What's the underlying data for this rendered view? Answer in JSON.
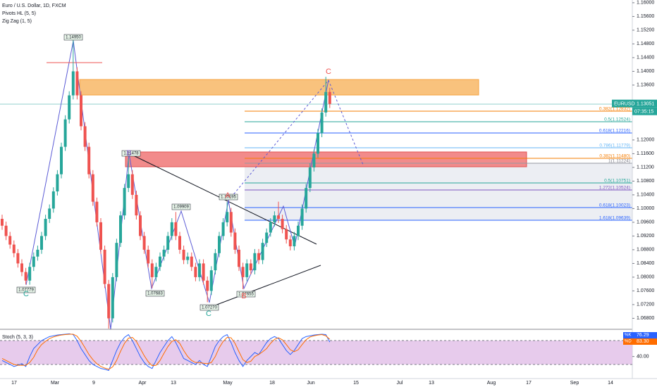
{
  "header": {
    "title": "Euro / U.S. Dollar, 1D, FXCM",
    "indicators": [
      "Pivots HL (5, 5)",
      "Zig Zag (1, 5)"
    ]
  },
  "chart_data": {
    "type": "candlestick",
    "ylim": [
      1.0648,
      1.1608
    ],
    "yticks": [
      {
        "value": 1.068,
        "label": "1.06800"
      },
      {
        "value": 1.072,
        "label": "1.07200"
      },
      {
        "value": 1.076,
        "label": "1.07600"
      },
      {
        "value": 1.08,
        "label": "1.08000"
      },
      {
        "value": 1.084,
        "label": "1.08400"
      },
      {
        "value": 1.088,
        "label": "1.08800"
      },
      {
        "value": 1.092,
        "label": "1.09200"
      },
      {
        "value": 1.096,
        "label": "1.09600"
      },
      {
        "value": 1.1,
        "label": "1.10000"
      },
      {
        "value": 1.104,
        "label": "1.10400"
      },
      {
        "value": 1.108,
        "label": "1.10800"
      },
      {
        "value": 1.112,
        "label": "1.11200"
      },
      {
        "value": 1.116,
        "label": "1.11600"
      },
      {
        "value": 1.12,
        "label": "1.12000"
      },
      {
        "value": 1.136,
        "label": "1.13600"
      },
      {
        "value": 1.14,
        "label": "1.14000"
      },
      {
        "value": 1.144,
        "label": "1.14400"
      },
      {
        "value": 1.148,
        "label": "1.14800"
      },
      {
        "value": 1.152,
        "label": "1.15200"
      },
      {
        "value": 1.156,
        "label": "1.15600"
      },
      {
        "value": 1.16,
        "label": "1.16000"
      }
    ],
    "xticks": [
      "17",
      "Mar",
      "9",
      "Apr",
      "13",
      "May",
      "18",
      "Jun",
      "15",
      "Jul",
      "13",
      "Aug",
      "17",
      "Sep",
      "14"
    ],
    "up_color": "#26a69a",
    "down_color": "#ef5350",
    "ohlc": [
      [
        1.097,
        1.0982,
        1.0938,
        1.095
      ],
      [
        1.095,
        1.0962,
        1.0908,
        1.092
      ],
      [
        1.092,
        1.0932,
        1.0883,
        1.0895
      ],
      [
        1.0895,
        1.0907,
        1.0858,
        1.087
      ],
      [
        1.087,
        1.0882,
        1.0828,
        1.084
      ],
      [
        1.084,
        1.0852,
        1.0803,
        1.0815
      ],
      [
        1.0815,
        1.0827,
        1.0779,
        1.079
      ],
      [
        1.079,
        1.0842,
        1.0778,
        1.083
      ],
      [
        1.083,
        1.0872,
        1.0818,
        1.086
      ],
      [
        1.086,
        1.0892,
        1.0848,
        1.088
      ],
      [
        1.088,
        1.0932,
        1.0868,
        1.092
      ],
      [
        1.092,
        1.0982,
        1.0908,
        1.097
      ],
      [
        1.097,
        1.1012,
        1.0958,
        1.1
      ],
      [
        1.1,
        1.1062,
        1.0988,
        1.105
      ],
      [
        1.105,
        1.1112,
        1.1038,
        1.11
      ],
      [
        1.11,
        1.1192,
        1.1088,
        1.118
      ],
      [
        1.118,
        1.1272,
        1.1168,
        1.126
      ],
      [
        1.126,
        1.1342,
        1.1248,
        1.133
      ],
      [
        1.133,
        1.1495,
        1.1318,
        1.14
      ],
      [
        1.14,
        1.1412,
        1.1318,
        1.133
      ],
      [
        1.133,
        1.1342,
        1.1228,
        1.124
      ],
      [
        1.124,
        1.1252,
        1.1168,
        1.118
      ],
      [
        1.118,
        1.1192,
        1.1088,
        1.11
      ],
      [
        1.11,
        1.1112,
        1.1008,
        1.102
      ],
      [
        1.102,
        1.1032,
        1.0948,
        1.096
      ],
      [
        1.096,
        1.0972,
        1.0868,
        1.088
      ],
      [
        1.088,
        1.0892,
        1.0768,
        1.078
      ],
      [
        1.078,
        1.0792,
        1.065,
        1.068
      ],
      [
        1.068,
        1.0812,
        1.0668,
        1.08
      ],
      [
        1.08,
        1.0912,
        1.0788,
        1.09
      ],
      [
        1.09,
        1.0992,
        1.0888,
        1.098
      ],
      [
        1.098,
        1.1072,
        1.0968,
        1.106
      ],
      [
        1.106,
        1.1147,
        1.1048,
        1.11
      ],
      [
        1.11,
        1.1112,
        1.1028,
        1.104
      ],
      [
        1.104,
        1.1052,
        1.0968,
        1.098
      ],
      [
        1.098,
        1.0992,
        1.0908,
        1.092
      ],
      [
        1.092,
        1.0932,
        1.0868,
        1.088
      ],
      [
        1.088,
        1.0892,
        1.0828,
        1.084
      ],
      [
        1.084,
        1.0852,
        1.0768,
        1.08
      ],
      [
        1.08,
        1.0842,
        1.0788,
        1.083
      ],
      [
        1.083,
        1.0872,
        1.0818,
        1.086
      ],
      [
        1.086,
        1.0892,
        1.0848,
        1.088
      ],
      [
        1.088,
        1.0932,
        1.0868,
        1.092
      ],
      [
        1.092,
        1.0972,
        1.0908,
        1.096
      ],
      [
        1.096,
        1.099,
        1.0908,
        1.092
      ],
      [
        1.092,
        1.0932,
        1.0868,
        1.088
      ],
      [
        1.088,
        1.0892,
        1.0838,
        1.085
      ],
      [
        1.085,
        1.0872,
        1.0838,
        1.086
      ],
      [
        1.086,
        1.0872,
        1.0818,
        1.083
      ],
      [
        1.083,
        1.0842,
        1.0788,
        1.08
      ],
      [
        1.08,
        1.0852,
        1.0788,
        1.084
      ],
      [
        1.084,
        1.0852,
        1.0778,
        1.079
      ],
      [
        1.079,
        1.0802,
        1.0727,
        1.076
      ],
      [
        1.076,
        1.0832,
        1.0748,
        1.082
      ],
      [
        1.082,
        1.0882,
        1.0808,
        1.087
      ],
      [
        1.087,
        1.0932,
        1.0858,
        1.092
      ],
      [
        1.092,
        1.0972,
        1.0908,
        1.096
      ],
      [
        1.096,
        1.1019,
        1.0948,
        1.099
      ],
      [
        1.099,
        1.1002,
        1.0918,
        1.093
      ],
      [
        1.093,
        1.0942,
        1.0868,
        1.088
      ],
      [
        1.088,
        1.0892,
        1.0818,
        1.083
      ],
      [
        1.083,
        1.0842,
        1.0765,
        1.08
      ],
      [
        1.08,
        1.0852,
        1.0788,
        1.084
      ],
      [
        1.084,
        1.0852,
        1.0808,
        1.082
      ],
      [
        1.082,
        1.0882,
        1.0808,
        1.087
      ],
      [
        1.087,
        1.0882,
        1.0838,
        1.085
      ],
      [
        1.085,
        1.0912,
        1.0838,
        1.09
      ],
      [
        1.09,
        1.0942,
        1.0888,
        1.093
      ],
      [
        1.093,
        1.0972,
        1.0918,
        1.096
      ],
      [
        1.096,
        1.0992,
        1.0948,
        1.098
      ],
      [
        1.098,
        1.102,
        1.0958,
        1.097
      ],
      [
        1.097,
        1.0982,
        1.0928,
        1.094
      ],
      [
        1.094,
        1.0952,
        1.0898,
        1.091
      ],
      [
        1.091,
        1.0922,
        1.0878,
        1.089
      ],
      [
        1.089,
        1.0932,
        1.0878,
        1.092
      ],
      [
        1.092,
        1.0962,
        1.0908,
        1.095
      ],
      [
        1.095,
        1.1012,
        1.0938,
        1.1
      ],
      [
        1.1,
        1.1072,
        1.0988,
        1.106
      ],
      [
        1.106,
        1.1132,
        1.1048,
        1.112
      ],
      [
        1.112,
        1.1172,
        1.1108,
        1.116
      ],
      [
        1.116,
        1.1232,
        1.1148,
        1.122
      ],
      [
        1.122,
        1.1292,
        1.1208,
        1.128
      ],
      [
        1.128,
        1.1384,
        1.1268,
        1.134
      ],
      [
        1.134,
        1.1352,
        1.1293,
        1.1305
      ]
    ],
    "symbol": "EURUSD",
    "last_price": {
      "value": 1.13051,
      "label": "1.13051"
    },
    "countdown": "07:35:15",
    "pivots": [
      "1.14950",
      "1.11478",
      "1.09909",
      "1.10195",
      "1.07779",
      "1.07683",
      "1.07270",
      "1.07655"
    ],
    "wave_letters": [
      "C",
      "C",
      "C",
      "B",
      "B",
      "A"
    ],
    "fib_levels": [
      "0.382(1.12832)",
      "0.5(1.12524)",
      "0.618(1.12216)",
      "0.786(1.11779)",
      "0.382(1.11480)",
      "1(1.11224)",
      "0.5(1.10751)",
      "1.272(1.10524)",
      "0.618(1.10023)",
      "1.618(1.09639)"
    ]
  },
  "stoch": {
    "type": "line",
    "title": "Stoch (5, 3, 3)",
    "ylim": [
      0,
      100
    ],
    "yticks": [
      {
        "value": 40,
        "label": "40.00"
      }
    ],
    "band": [
      20,
      80
    ],
    "series": [
      {
        "name": "%K",
        "color": "#2962ff",
        "current_label": "76.29",
        "values": [
          30,
          25,
          20,
          15,
          18,
          22,
          15,
          40,
          60,
          70,
          80,
          85,
          90,
          92,
          94,
          95,
          96,
          97,
          95,
          80,
          60,
          45,
          30,
          20,
          15,
          10,
          8,
          5,
          30,
          55,
          75,
          88,
          95,
          80,
          60,
          40,
          25,
          15,
          10,
          30,
          50,
          65,
          80,
          90,
          75,
          55,
          35,
          30,
          25,
          20,
          30,
          20,
          15,
          40,
          65,
          80,
          90,
          95,
          75,
          50,
          30,
          15,
          30,
          40,
          50,
          45,
          60,
          75,
          85,
          90,
          85,
          70,
          55,
          45,
          55,
          70,
          85,
          90,
          92,
          94,
          95,
          96,
          95,
          76.29
        ]
      },
      {
        "name": "%D",
        "color": "#ff6d00",
        "current_label": "83.30",
        "values": [
          35,
          30,
          25,
          20,
          18,
          18,
          18,
          25,
          38,
          57,
          70,
          78,
          85,
          89,
          92,
          94,
          95,
          96,
          96,
          91,
          78,
          62,
          45,
          32,
          22,
          15,
          11,
          8,
          14,
          30,
          53,
          73,
          86,
          88,
          78,
          60,
          42,
          27,
          17,
          18,
          30,
          48,
          65,
          78,
          82,
          73,
          55,
          40,
          30,
          25,
          25,
          23,
          22,
          25,
          40,
          62,
          78,
          88,
          87,
          73,
          52,
          32,
          25,
          28,
          40,
          45,
          52,
          60,
          73,
          83,
          87,
          82,
          70,
          57,
          52,
          57,
          70,
          82,
          89,
          92,
          94,
          95,
          92,
          83.3
        ]
      }
    ]
  }
}
